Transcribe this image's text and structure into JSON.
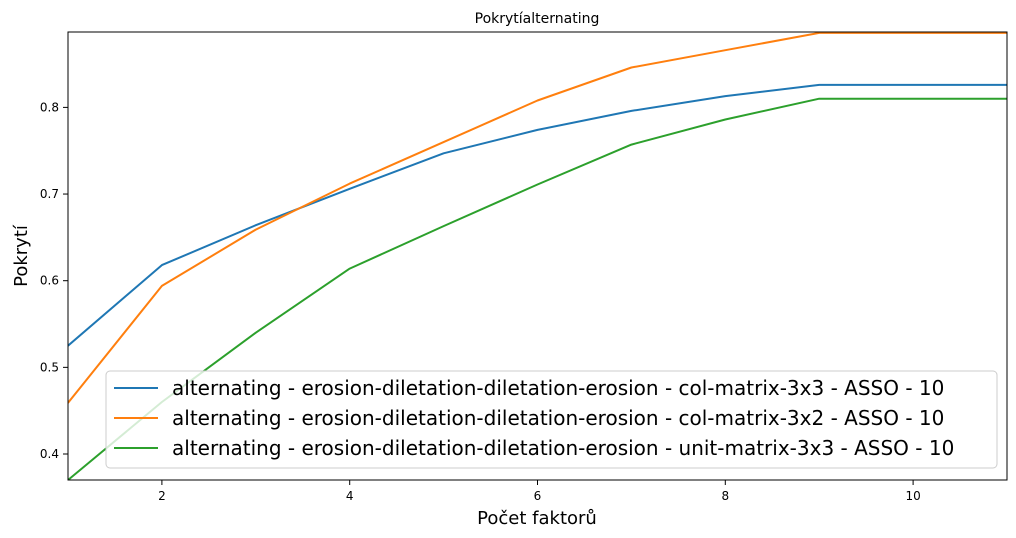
{
  "chart_data": {
    "type": "line",
    "title": "Pokrytíalternating",
    "xlabel": "Počet faktorů",
    "ylabel": "Pokrytí",
    "xlim": [
      1,
      11
    ],
    "ylim": [
      0.37,
      0.887
    ],
    "xticks": [
      2,
      4,
      6,
      8,
      10
    ],
    "yticks": [
      0.4,
      0.5,
      0.6,
      0.7,
      0.8
    ],
    "grid": false,
    "legend_position": "lower-right",
    "x": [
      1,
      2,
      3,
      4,
      5,
      6,
      7,
      8,
      9,
      10,
      11
    ],
    "series": [
      {
        "name": "alternating - erosion-diletation-diletation-erosion - col-matrix-3x3 - ASSO - 10",
        "color": "#1f77b4",
        "values": [
          0.525,
          0.618,
          0.664,
          0.706,
          0.747,
          0.774,
          0.796,
          0.813,
          0.826,
          0.826,
          0.826
        ]
      },
      {
        "name": "alternating - erosion-diletation-diletation-erosion - col-matrix-3x2 - ASSO - 10",
        "color": "#ff7f0e",
        "values": [
          0.459,
          0.594,
          0.659,
          0.712,
          0.76,
          0.808,
          0.846,
          0.866,
          0.886,
          0.886,
          0.886
        ]
      },
      {
        "name": "alternating - erosion-diletation-diletation-erosion - unit-matrix-3x3 - ASSO - 10",
        "color": "#2ca02c",
        "values": [
          0.37,
          0.46,
          0.54,
          0.614,
          0.663,
          0.711,
          0.757,
          0.786,
          0.81,
          0.81,
          0.81
        ]
      }
    ]
  }
}
